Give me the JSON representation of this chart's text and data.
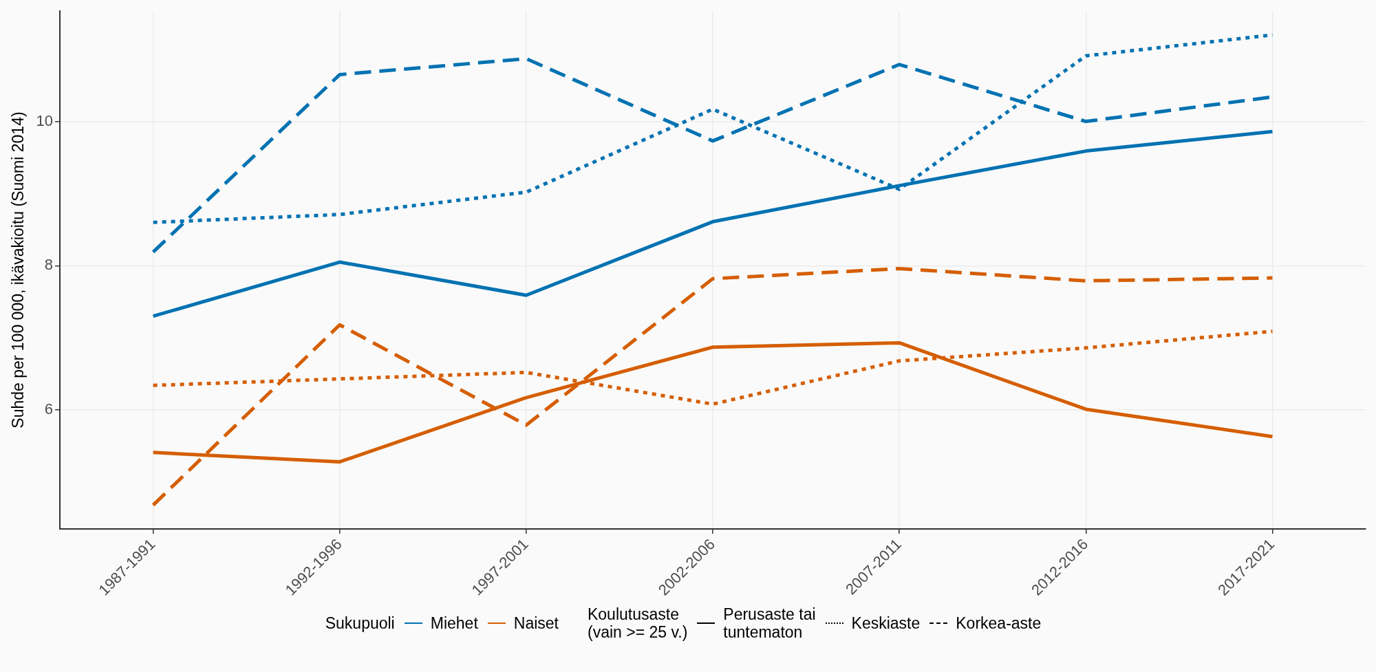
{
  "chart_data": {
    "type": "line",
    "ylabel": "Suhde per 100 000, ikävakioitu (Suomi 2014)",
    "categories": [
      "1987-1991",
      "1992-1996",
      "1997-2001",
      "2002-2006",
      "2007-2011",
      "2012-2016",
      "2017-2021"
    ],
    "ylim": [
      4.35,
      11.53
    ],
    "yticks": [
      6,
      8,
      10
    ],
    "grid": true,
    "legend": "bottom",
    "marker": "none",
    "legend_title": [
      "Sukupuoli",
      "Koulutusaste\n(vain >= 25 v.)"
    ],
    "series": [
      {
        "color": "#0072b2",
        "line_style": "solid",
        "values": [
          7.3,
          8.05,
          7.59,
          8.61,
          9.11,
          9.59,
          9.86
        ]
      },
      {
        "color": "#0072b2",
        "line_style": "dotted",
        "values": [
          8.6,
          8.71,
          9.02,
          10.17,
          9.06,
          10.91,
          11.2
        ]
      },
      {
        "color": "#0072b2",
        "line_style": "dashed",
        "values": [
          8.19,
          10.65,
          10.87,
          9.73,
          10.79,
          10.0,
          10.34
        ]
      },
      {
        "color": "#d55e00",
        "line_style": "solid",
        "values": [
          5.41,
          5.28,
          6.17,
          6.87,
          6.93,
          6.01,
          5.63
        ]
      },
      {
        "color": "#d55e00",
        "line_style": "dotted",
        "values": [
          6.34,
          6.43,
          6.52,
          6.08,
          6.68,
          6.86,
          7.09
        ]
      },
      {
        "color": "#d55e00",
        "line_style": "dashed",
        "values": [
          4.68,
          7.18,
          5.79,
          7.82,
          7.96,
          7.79,
          7.83
        ]
      },
      {
        "name": "Miehet",
        "color": "#0072b2",
        "values": [
          null,
          null,
          null,
          null,
          null,
          null,
          null
        ]
      },
      {
        "name": "Naiset",
        "color": "#d55e00",
        "values": [
          null,
          null,
          null,
          null,
          null,
          null,
          null
        ]
      },
      {
        "name": "Perusaste tai\ntuntematon",
        "color": "#000000",
        "line_style": "solid",
        "values": [
          null,
          null,
          null,
          null,
          null,
          null,
          null
        ]
      },
      {
        "name": "Keskiaste",
        "color": "#000000",
        "line_style": "dotted",
        "values": [
          null,
          null,
          null,
          null,
          null,
          null,
          null
        ]
      },
      {
        "name": "Korkea-aste",
        "color": "#000000",
        "line_style": "dashed",
        "values": [
          null,
          null,
          null,
          null,
          null,
          null,
          null
        ]
      }
    ]
  }
}
